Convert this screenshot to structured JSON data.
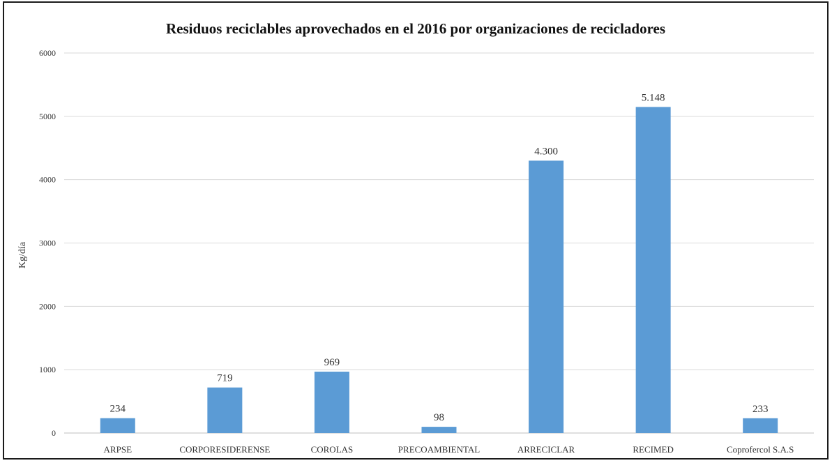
{
  "chart_data": {
    "type": "bar",
    "title": "Residuos reciclables aprovechados en el 2016 por organizaciones de recicladores",
    "xlabel": "",
    "ylabel": "Kg/día",
    "ylim": [
      0,
      6000
    ],
    "yticks": [
      0,
      1000,
      2000,
      3000,
      4000,
      5000,
      6000
    ],
    "grid": true,
    "bar_color": "#5b9bd5",
    "categories": [
      "ARPSE",
      "CORPORESIDERENSE",
      "COROLAS",
      "PRECOAMBIENTAL",
      "ARRECICLAR",
      "RECIMED",
      "Coprofercol S.A.S"
    ],
    "values": [
      234,
      719,
      969,
      98,
      4300,
      5148,
      233
    ],
    "data_labels": [
      "234",
      "719",
      "969",
      "98",
      "4.300",
      "5.148",
      "233"
    ]
  }
}
